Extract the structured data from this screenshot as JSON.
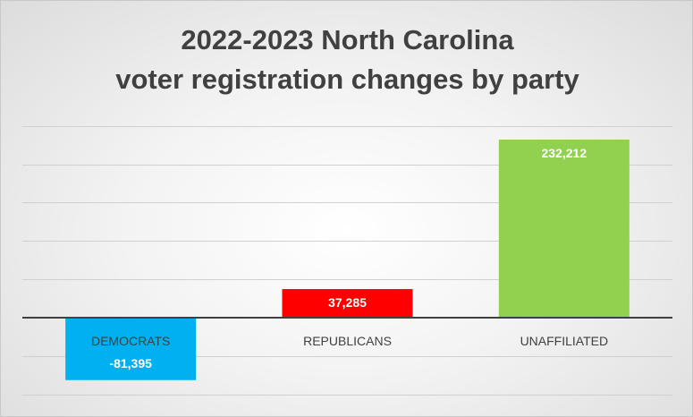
{
  "chart_data": {
    "type": "bar",
    "title_lines": [
      "2022-2023 North Carolina",
      "voter registration changes by party"
    ],
    "categories": [
      "DEMOCRATS",
      "REPUBLICANS",
      "UNAFFILIATED"
    ],
    "values": [
      -81395,
      37285,
      232212
    ],
    "value_labels": [
      "-81,395",
      "37,285",
      "232,212"
    ],
    "colors": [
      "#00b0f0",
      "#ff0000",
      "#92d050"
    ],
    "ylim": [
      -100000,
      250000
    ],
    "grid": true,
    "xlabel": "",
    "ylabel": ""
  }
}
